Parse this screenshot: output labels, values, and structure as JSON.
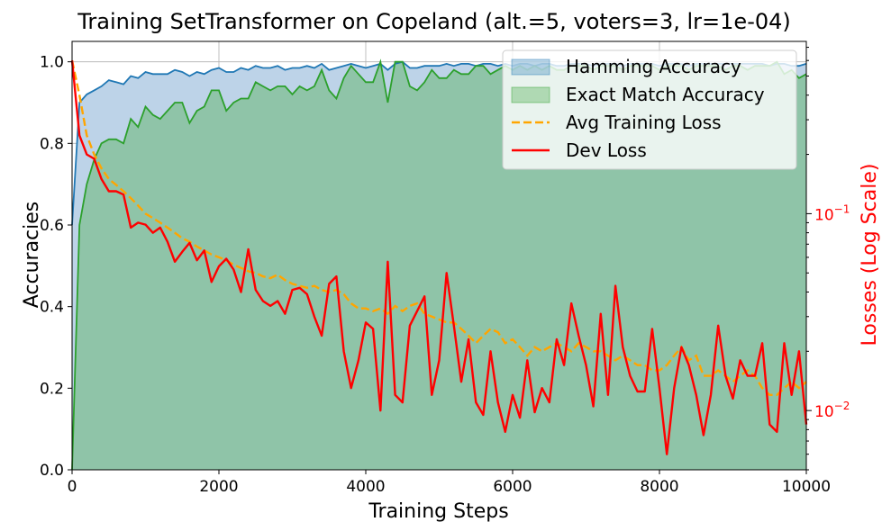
{
  "chart_data": {
    "type": "line",
    "title": "Training SetTransformer on Copeland (alt.=5, voters=3, lr=1e-04)",
    "xlabel": "Training Steps",
    "ylabel_left": "Accuracies",
    "ylabel_right": "Losses (Log Scale)",
    "xlim": [
      0,
      10000
    ],
    "ylim_left": [
      0,
      1.05
    ],
    "ylim_right_log": [
      0.005,
      0.75
    ],
    "grid": true,
    "legend_placement": "top-right",
    "x_ticks": [
      "0",
      "2000",
      "4000",
      "6000",
      "8000",
      "10000"
    ],
    "y_ticks_left": [
      "0.0",
      "0.2",
      "0.4",
      "0.6",
      "0.8",
      "1.0"
    ],
    "y_ticks_right": [
      {
        "value": 0.1,
        "base": "10",
        "exp": "−1"
      },
      {
        "value": 0.01,
        "base": "10",
        "exp": "−2"
      }
    ],
    "colors": {
      "hamming": "#1f77b4",
      "hamming_fill": "#bdd3e8",
      "exact": "#2ca02c",
      "exact_fill": "#8fc4a8",
      "train_loss": "#ffa500",
      "dev_loss": "#ff0000",
      "right_axis": "#ff0000",
      "grid": "#b0b0b0"
    },
    "legend": [
      {
        "label": "Hamming Accuracy",
        "kind": "patch",
        "color": "#1f77b4"
      },
      {
        "label": "Exact Match Accuracy",
        "kind": "patch",
        "color": "#2ca02c"
      },
      {
        "label": "Avg Training Loss",
        "kind": "dashed",
        "color": "#ffa500"
      },
      {
        "label": "Dev Loss",
        "kind": "line",
        "color": "#ff0000"
      }
    ],
    "series": [
      {
        "name": "Hamming Accuracy",
        "axis": "left",
        "x": [
          0,
          100,
          200,
          300,
          400,
          500,
          600,
          700,
          800,
          900,
          1000,
          1100,
          1200,
          1300,
          1400,
          1500,
          1600,
          1700,
          1800,
          1900,
          2000,
          2100,
          2200,
          2300,
          2400,
          2500,
          2600,
          2700,
          2800,
          2900,
          3000,
          3100,
          3200,
          3300,
          3400,
          3500,
          3600,
          3700,
          3800,
          3900,
          4000,
          4100,
          4200,
          4300,
          4400,
          4500,
          4600,
          4700,
          4800,
          4900,
          5000,
          5100,
          5200,
          5300,
          5400,
          5500,
          5600,
          5700,
          5800,
          5900,
          6000,
          6100,
          6200,
          6300,
          6400,
          6500,
          6600,
          6700,
          6800,
          6900,
          7000,
          7100,
          7200,
          7300,
          7400,
          7500,
          7600,
          7700,
          7800,
          7900,
          8000,
          8100,
          8200,
          8300,
          8400,
          8500,
          8600,
          8700,
          8800,
          8900,
          9000,
          9100,
          9200,
          9300,
          9400,
          9500,
          9600,
          9700,
          9800,
          9900,
          10000
        ],
        "y": [
          0.6,
          0.9,
          0.92,
          0.93,
          0.94,
          0.955,
          0.95,
          0.945,
          0.965,
          0.96,
          0.975,
          0.97,
          0.97,
          0.97,
          0.98,
          0.975,
          0.965,
          0.975,
          0.97,
          0.98,
          0.985,
          0.975,
          0.975,
          0.985,
          0.98,
          0.99,
          0.985,
          0.985,
          0.99,
          0.98,
          0.985,
          0.985,
          0.99,
          0.985,
          0.995,
          0.98,
          0.985,
          0.99,
          0.995,
          0.99,
          0.985,
          0.99,
          0.995,
          0.98,
          0.995,
          1.0,
          0.985,
          0.985,
          0.99,
          0.99,
          0.99,
          0.995,
          0.99,
          0.995,
          0.995,
          0.99,
          0.995,
          0.995,
          0.99,
          0.995,
          0.99,
          0.995,
          0.995,
          0.99,
          0.995,
          0.995,
          0.99,
          0.99,
          0.995,
          0.995,
          0.995,
          0.99,
          0.995,
          0.995,
          0.995,
          0.99,
          0.995,
          0.995,
          0.995,
          0.995,
          0.99,
          0.995,
          0.995,
          0.995,
          0.99,
          0.995,
          0.995,
          0.995,
          0.995,
          0.995,
          0.995,
          0.995,
          0.995,
          0.995,
          0.995,
          0.99,
          0.995,
          0.995,
          0.99,
          0.99,
          0.995
        ]
      },
      {
        "name": "Exact Match Accuracy",
        "axis": "left",
        "x": [
          0,
          100,
          200,
          300,
          400,
          500,
          600,
          700,
          800,
          900,
          1000,
          1100,
          1200,
          1300,
          1400,
          1500,
          1600,
          1700,
          1800,
          1900,
          2000,
          2100,
          2200,
          2300,
          2400,
          2500,
          2600,
          2700,
          2800,
          2900,
          3000,
          3100,
          3200,
          3300,
          3400,
          3500,
          3600,
          3700,
          3800,
          3900,
          4000,
          4100,
          4200,
          4300,
          4400,
          4500,
          4600,
          4700,
          4800,
          4900,
          5000,
          5100,
          5200,
          5300,
          5400,
          5500,
          5600,
          5700,
          5800,
          5900,
          6000,
          6100,
          6200,
          6300,
          6400,
          6500,
          6600,
          6700,
          6800,
          6900,
          7000,
          7100,
          7200,
          7300,
          7400,
          7500,
          7600,
          7700,
          7800,
          7900,
          8000,
          8100,
          8200,
          8300,
          8400,
          8500,
          8600,
          8700,
          8800,
          8900,
          9000,
          9100,
          9200,
          9300,
          9400,
          9500,
          9600,
          9700,
          9800,
          9900,
          10000
        ],
        "y": [
          0.0,
          0.6,
          0.7,
          0.76,
          0.8,
          0.81,
          0.81,
          0.8,
          0.86,
          0.84,
          0.89,
          0.87,
          0.86,
          0.88,
          0.9,
          0.9,
          0.85,
          0.88,
          0.89,
          0.93,
          0.93,
          0.88,
          0.9,
          0.91,
          0.91,
          0.95,
          0.94,
          0.93,
          0.94,
          0.94,
          0.92,
          0.94,
          0.93,
          0.94,
          0.98,
          0.93,
          0.91,
          0.96,
          0.99,
          0.97,
          0.95,
          0.95,
          1.0,
          0.9,
          1.0,
          1.0,
          0.94,
          0.93,
          0.95,
          0.98,
          0.96,
          0.96,
          0.98,
          0.97,
          0.97,
          0.99,
          0.99,
          0.97,
          0.98,
          0.99,
          0.98,
          0.99,
          0.98,
          0.99,
          0.98,
          0.99,
          0.98,
          0.98,
          0.99,
          0.99,
          0.99,
          0.98,
          0.99,
          0.99,
          0.99,
          0.98,
          0.99,
          0.99,
          0.99,
          0.99,
          0.98,
          0.99,
          0.99,
          0.99,
          0.98,
          0.99,
          0.99,
          0.99,
          0.99,
          0.98,
          0.99,
          0.99,
          0.98,
          0.99,
          0.99,
          0.99,
          1.0,
          0.97,
          0.98,
          0.96,
          0.97
        ]
      },
      {
        "name": "Avg Training Loss",
        "axis": "right",
        "x": [
          0,
          100,
          200,
          300,
          400,
          500,
          600,
          700,
          800,
          900,
          1000,
          1100,
          1200,
          1300,
          1400,
          1500,
          1600,
          1700,
          1800,
          1900,
          2000,
          2100,
          2200,
          2300,
          2400,
          2500,
          2600,
          2700,
          2800,
          2900,
          3000,
          3100,
          3200,
          3300,
          3400,
          3500,
          3600,
          3700,
          3800,
          3900,
          4000,
          4100,
          4200,
          4300,
          4400,
          4500,
          4600,
          4700,
          4800,
          4900,
          5000,
          5100,
          5200,
          5300,
          5400,
          5500,
          5600,
          5700,
          5800,
          5900,
          6000,
          6100,
          6200,
          6300,
          6400,
          6500,
          6600,
          6700,
          6800,
          6900,
          7000,
          7100,
          7200,
          7300,
          7400,
          7500,
          7600,
          7700,
          7800,
          7900,
          8000,
          8100,
          8200,
          8300,
          8400,
          8500,
          8600,
          8700,
          8800,
          8900,
          9000,
          9100,
          9200,
          9300,
          9400,
          9500,
          9600,
          9700,
          9800,
          9900,
          10000
        ],
        "y": [
          0.6,
          0.4,
          0.25,
          0.2,
          0.17,
          0.15,
          0.14,
          0.13,
          0.12,
          0.11,
          0.1,
          0.095,
          0.09,
          0.085,
          0.08,
          0.075,
          0.072,
          0.068,
          0.065,
          0.062,
          0.06,
          0.058,
          0.055,
          0.053,
          0.051,
          0.05,
          0.048,
          0.047,
          0.049,
          0.046,
          0.044,
          0.043,
          0.042,
          0.043,
          0.041,
          0.04,
          0.041,
          0.039,
          0.035,
          0.033,
          0.033,
          0.032,
          0.033,
          0.031,
          0.034,
          0.032,
          0.034,
          0.035,
          0.031,
          0.03,
          0.029,
          0.028,
          0.028,
          0.026,
          0.024,
          0.022,
          0.024,
          0.026,
          0.025,
          0.022,
          0.023,
          0.021,
          0.019,
          0.021,
          0.02,
          0.021,
          0.022,
          0.021,
          0.02,
          0.022,
          0.021,
          0.02,
          0.02,
          0.019,
          0.018,
          0.019,
          0.018,
          0.017,
          0.017,
          0.016,
          0.016,
          0.017,
          0.019,
          0.021,
          0.018,
          0.019,
          0.015,
          0.015,
          0.016,
          0.015,
          0.014,
          0.015,
          0.016,
          0.015,
          0.013,
          0.012,
          0.012,
          0.013,
          0.014,
          0.013,
          0.014
        ]
      },
      {
        "name": "Dev Loss",
        "axis": "right",
        "x": [
          0,
          100,
          200,
          300,
          400,
          500,
          600,
          700,
          800,
          900,
          1000,
          1100,
          1200,
          1300,
          1400,
          1500,
          1600,
          1700,
          1800,
          1900,
          2000,
          2100,
          2200,
          2300,
          2400,
          2500,
          2600,
          2700,
          2800,
          2900,
          3000,
          3100,
          3200,
          3300,
          3400,
          3500,
          3600,
          3700,
          3800,
          3900,
          4000,
          4100,
          4200,
          4300,
          4400,
          4500,
          4600,
          4700,
          4800,
          4900,
          5000,
          5100,
          5200,
          5300,
          5400,
          5500,
          5600,
          5700,
          5800,
          5900,
          6000,
          6100,
          6200,
          6300,
          6400,
          6500,
          6600,
          6700,
          6800,
          6900,
          7000,
          7100,
          7200,
          7300,
          7400,
          7500,
          7600,
          7700,
          7800,
          7900,
          8000,
          8100,
          8200,
          8300,
          8400,
          8500,
          8600,
          8700,
          8800,
          8900,
          9000,
          9100,
          9200,
          9300,
          9400,
          9500,
          9600,
          9700,
          9800,
          9900,
          10000
        ],
        "y": [
          0.6,
          0.25,
          0.2,
          0.19,
          0.15,
          0.13,
          0.13,
          0.125,
          0.085,
          0.09,
          0.088,
          0.08,
          0.085,
          0.072,
          0.057,
          0.064,
          0.071,
          0.058,
          0.065,
          0.045,
          0.054,
          0.059,
          0.052,
          0.04,
          0.066,
          0.041,
          0.036,
          0.034,
          0.036,
          0.031,
          0.041,
          0.042,
          0.039,
          0.03,
          0.024,
          0.044,
          0.048,
          0.02,
          0.013,
          0.018,
          0.028,
          0.026,
          0.01,
          0.057,
          0.012,
          0.011,
          0.027,
          0.032,
          0.038,
          0.012,
          0.018,
          0.05,
          0.027,
          0.014,
          0.023,
          0.011,
          0.0095,
          0.02,
          0.011,
          0.0078,
          0.012,
          0.0092,
          0.018,
          0.0098,
          0.013,
          0.011,
          0.023,
          0.017,
          0.035,
          0.024,
          0.017,
          0.0105,
          0.031,
          0.012,
          0.043,
          0.021,
          0.015,
          0.0125,
          0.0125,
          0.026,
          0.013,
          0.006,
          0.013,
          0.021,
          0.017,
          0.012,
          0.0075,
          0.012,
          0.027,
          0.015,
          0.0115,
          0.018,
          0.015,
          0.015,
          0.022,
          0.0085,
          0.0078,
          0.022,
          0.012,
          0.02,
          0.0085
        ]
      }
    ]
  }
}
